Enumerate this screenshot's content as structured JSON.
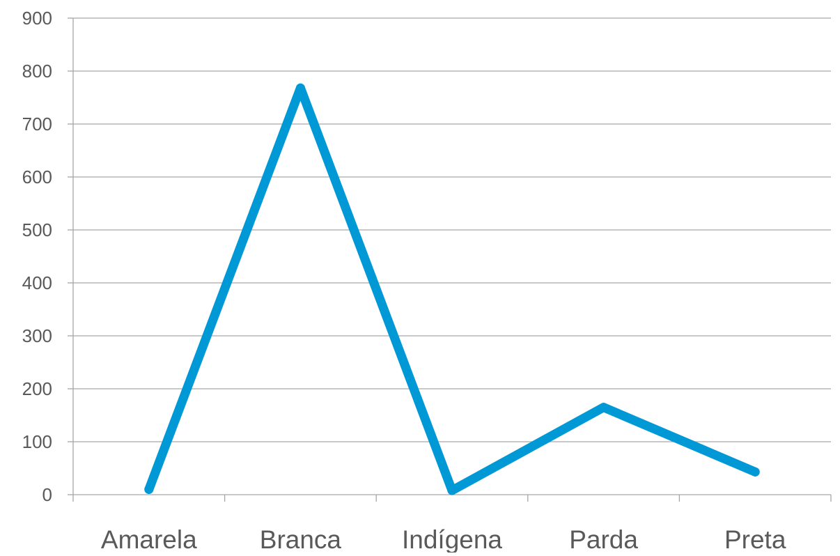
{
  "chart_data": {
    "type": "line",
    "title": "",
    "xlabel": "",
    "ylabel": "",
    "categories": [
      "Amarela",
      "Branca",
      "Indígena",
      "Parda",
      "Preta"
    ],
    "series": [
      {
        "values": [
          10,
          768,
          8,
          165,
          43
        ],
        "color": "#0099D6"
      }
    ],
    "ylim": [
      0,
      900
    ],
    "yticks": [
      "0",
      "100",
      "200",
      "300",
      "400",
      "500",
      "600",
      "700",
      "800",
      "900"
    ],
    "grid": true,
    "legend": "none",
    "colors": {
      "grid": "#A6A6A6",
      "axis": "#A6A6A6",
      "text": "#595959"
    }
  }
}
